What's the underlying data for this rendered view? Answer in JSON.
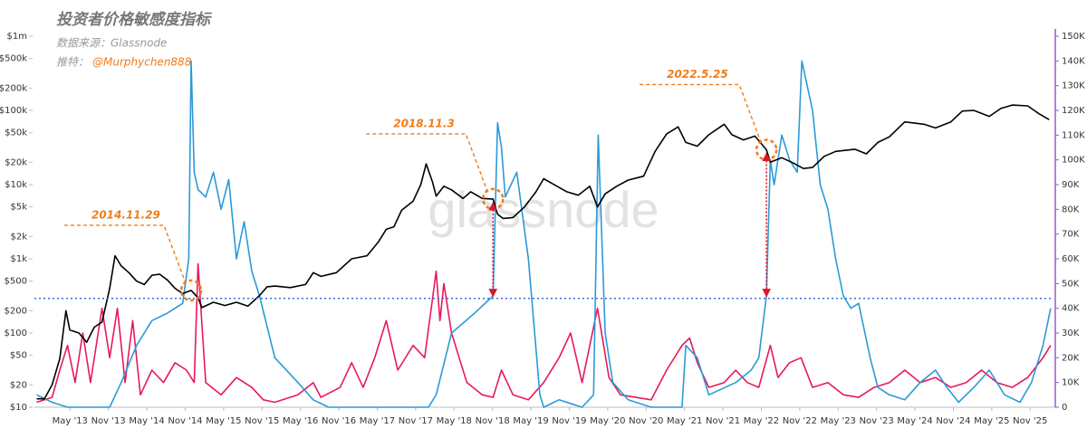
{
  "chart_data": {
    "type": "line",
    "title": "投资者价格敏感度指标",
    "source": "数据来源：Glassnode",
    "twitter_label": "推特：",
    "twitter_handle": "@Murphychen888",
    "watermark": "glassnode",
    "xlim": [
      2012.87,
      2026.16
    ],
    "xticks": [
      {
        "value": 2013.333,
        "label": "May '13"
      },
      {
        "value": 2013.833,
        "label": "Nov '13"
      },
      {
        "value": 2014.333,
        "label": "May '14"
      },
      {
        "value": 2014.833,
        "label": "Nov '14"
      },
      {
        "value": 2015.333,
        "label": "May '15"
      },
      {
        "value": 2015.833,
        "label": "Nov '15"
      },
      {
        "value": 2016.333,
        "label": "May '16"
      },
      {
        "value": 2016.833,
        "label": "Nov '16"
      },
      {
        "value": 2017.333,
        "label": "May '17"
      },
      {
        "value": 2017.833,
        "label": "Nov '17"
      },
      {
        "value": 2018.333,
        "label": "May '18"
      },
      {
        "value": 2018.833,
        "label": "Nov '18"
      },
      {
        "value": 2019.333,
        "label": "May '19"
      },
      {
        "value": 2019.833,
        "label": "Nov '19"
      },
      {
        "value": 2020.333,
        "label": "May '20"
      },
      {
        "value": 2020.833,
        "label": "Nov '20"
      },
      {
        "value": 2021.333,
        "label": "May '21"
      },
      {
        "value": 2021.833,
        "label": "Nov '21"
      },
      {
        "value": 2022.333,
        "label": "May '22"
      },
      {
        "value": 2022.833,
        "label": "Nov '22"
      },
      {
        "value": 2023.333,
        "label": "May '23"
      },
      {
        "value": 2023.833,
        "label": "Nov '23"
      },
      {
        "value": 2024.333,
        "label": "May '24"
      },
      {
        "value": 2024.833,
        "label": "Nov '24"
      },
      {
        "value": 2025.333,
        "label": "May '25"
      },
      {
        "value": 2025.833,
        "label": "Nov '25"
      }
    ],
    "ylim": [
      10,
      1000000
    ],
    "yscale": "log",
    "yticks": [
      {
        "value": 10,
        "label": "$10"
      },
      {
        "value": 20,
        "label": "$20"
      },
      {
        "value": 50,
        "label": "$50"
      },
      {
        "value": 100,
        "label": "$100"
      },
      {
        "value": 200,
        "label": "$200"
      },
      {
        "value": 500,
        "label": "$500"
      },
      {
        "value": 1000,
        "label": "$1k"
      },
      {
        "value": 2000,
        "label": "$2k"
      },
      {
        "value": 5000,
        "label": "$5k"
      },
      {
        "value": 10000,
        "label": "$10k"
      },
      {
        "value": 20000,
        "label": "$20k"
      },
      {
        "value": 50000,
        "label": "$50k"
      },
      {
        "value": 100000,
        "label": "$100k"
      },
      {
        "value": 200000,
        "label": "$200k"
      },
      {
        "value": 500000,
        "label": "$500k"
      },
      {
        "value": 1000000,
        "label": "$1m"
      }
    ],
    "y2lim": [
      0,
      150000
    ],
    "y2ticks": [
      0,
      {
        "value": 10000,
        "label": "10K"
      },
      {
        "value": 20000,
        "label": "20K"
      },
      {
        "value": 30000,
        "label": "30K"
      },
      {
        "value": 40000,
        "label": "40K"
      },
      {
        "value": 50000,
        "label": "50K"
      },
      {
        "value": 60000,
        "label": "60K"
      },
      {
        "value": 70000,
        "label": "70K"
      },
      {
        "value": 80000,
        "label": "80K"
      },
      {
        "value": 90000,
        "label": "90K"
      },
      {
        "value": 100000,
        "label": "100K"
      },
      {
        "value": 110000,
        "label": "110K"
      },
      {
        "value": 120000,
        "label": "120K"
      },
      {
        "value": 130000,
        "label": "130K"
      },
      {
        "value": 140000,
        "label": "140K"
      },
      {
        "value": 150000,
        "label": "150K"
      }
    ],
    "y2_axis_color": "#9b59d0",
    "reference_line": {
      "value": 44000,
      "axis": "y2",
      "color": "#3a6fd8"
    },
    "series": [
      {
        "color": "#e8185e",
        "axis": "y2",
        "x": [
          2012.9,
          2013.1,
          2013.2,
          2013.3,
          2013.4,
          2013.5,
          2013.6,
          2013.75,
          2013.85,
          2013.95,
          2014.05,
          2014.15,
          2014.25,
          2014.4,
          2014.55,
          2014.7,
          2014.85,
          2014.95,
          2015.0,
          2015.1,
          2015.3,
          2015.5,
          2015.7,
          2015.85,
          2016.0,
          2016.3,
          2016.5,
          2016.6,
          2016.85,
          2017.0,
          2017.15,
          2017.3,
          2017.45,
          2017.6,
          2017.8,
          2017.95,
          2018.1,
          2018.15,
          2018.2,
          2018.3,
          2018.4,
          2018.5,
          2018.7,
          2018.84,
          2018.95,
          2019.1,
          2019.3,
          2019.5,
          2019.7,
          2019.85,
          2020.0,
          2020.2,
          2020.35,
          2020.5,
          2020.9,
          2021.1,
          2021.3,
          2021.4,
          2021.5,
          2021.65,
          2021.85,
          2022.0,
          2022.15,
          2022.3,
          2022.45,
          2022.55,
          2022.7,
          2022.85,
          2023.0,
          2023.2,
          2023.4,
          2023.6,
          2023.8,
          2024.0,
          2024.2,
          2024.4,
          2024.6,
          2024.8,
          2025.0,
          2025.2,
          2025.4,
          2025.6,
          2025.8,
          2026.0,
          2026.1
        ],
        "values": [
          2000,
          4000,
          15000,
          25000,
          10000,
          30000,
          10000,
          40000,
          20000,
          40000,
          10000,
          35000,
          5000,
          15000,
          10000,
          18000,
          15000,
          10000,
          58000,
          10000,
          5000,
          12000,
          8000,
          3000,
          2000,
          5000,
          10000,
          4000,
          8000,
          18000,
          8000,
          20000,
          35000,
          15000,
          25000,
          20000,
          55000,
          35000,
          50000,
          30000,
          20000,
          10000,
          5000,
          4000,
          15000,
          5000,
          3000,
          10000,
          20000,
          30000,
          10000,
          40000,
          12000,
          5000,
          3000,
          15000,
          25000,
          28000,
          18000,
          8000,
          10000,
          15000,
          10000,
          8000,
          25000,
          12000,
          18000,
          20000,
          8000,
          10000,
          5000,
          4000,
          8000,
          10000,
          15000,
          10000,
          12000,
          8000,
          10000,
          15000,
          10000,
          8000,
          12000,
          20000,
          25000
        ]
      },
      {
        "color": "#2b9ad8",
        "axis": "y2",
        "x": [
          2012.9,
          2013.1,
          2013.3,
          2013.85,
          2014.0,
          2014.2,
          2014.4,
          2014.6,
          2014.8,
          2014.88,
          2014.91,
          2014.95,
          2015.0,
          2015.1,
          2015.2,
          2015.3,
          2015.4,
          2015.5,
          2015.6,
          2015.7,
          2015.8,
          2016.0,
          2016.3,
          2016.5,
          2016.7,
          2018.0,
          2018.1,
          2018.3,
          2018.6,
          2018.84,
          2018.9,
          2018.95,
          2019.0,
          2019.15,
          2019.3,
          2019.45,
          2019.5,
          2019.7,
          2020.0,
          2020.15,
          2020.21,
          2020.3,
          2020.4,
          2020.6,
          2020.9,
          2021.3,
          2021.35,
          2021.5,
          2021.65,
          2022.0,
          2022.2,
          2022.3,
          2022.4,
          2022.45,
          2022.5,
          2022.6,
          2022.7,
          2022.8,
          2022.86,
          2023.0,
          2023.1,
          2023.2,
          2023.3,
          2023.4,
          2023.5,
          2023.6,
          2023.75,
          2023.85,
          2024.0,
          2024.2,
          2024.4,
          2024.6,
          2024.75,
          2024.9,
          2025.1,
          2025.3,
          2025.5,
          2025.7,
          2025.85,
          2026.0,
          2026.1
        ],
        "values": [
          5000,
          2000,
          0,
          0,
          10000,
          25000,
          35000,
          38000,
          42000,
          60000,
          140000,
          95000,
          88000,
          85000,
          95000,
          80000,
          92000,
          60000,
          75000,
          55000,
          45000,
          20000,
          10000,
          3000,
          0,
          0,
          5000,
          30000,
          38000,
          45000,
          115000,
          105000,
          85000,
          95000,
          60000,
          5000,
          0,
          3000,
          0,
          5000,
          110000,
          30000,
          10000,
          3000,
          0,
          0,
          25000,
          20000,
          5000,
          10000,
          15000,
          20000,
          45000,
          100000,
          90000,
          110000,
          100000,
          95000,
          140000,
          120000,
          90000,
          80000,
          60000,
          45000,
          40000,
          42000,
          20000,
          8000,
          5000,
          3000,
          10000,
          15000,
          8000,
          2000,
          8000,
          15000,
          5000,
          2000,
          10000,
          25000,
          40000
        ]
      },
      {
        "color": "#000000",
        "axis": "y",
        "x": [
          2012.9,
          2013.0,
          2013.1,
          2013.2,
          2013.28,
          2013.33,
          2013.45,
          2013.55,
          2013.65,
          2013.75,
          2013.85,
          2013.92,
          2014.0,
          2014.1,
          2014.2,
          2014.3,
          2014.4,
          2014.5,
          2014.6,
          2014.7,
          2014.8,
          2014.91,
          2015.0,
          2015.05,
          2015.2,
          2015.35,
          2015.5,
          2015.65,
          2015.8,
          2015.9,
          2016.0,
          2016.2,
          2016.4,
          2016.5,
          2016.6,
          2016.8,
          2016.95,
          2017.0,
          2017.2,
          2017.35,
          2017.45,
          2017.55,
          2017.65,
          2017.8,
          2017.9,
          2017.97,
          2018.05,
          2018.1,
          2018.2,
          2018.3,
          2018.45,
          2018.55,
          2018.7,
          2018.84,
          2018.9,
          2018.97,
          2019.1,
          2019.25,
          2019.4,
          2019.5,
          2019.6,
          2019.8,
          2019.95,
          2020.1,
          2020.2,
          2020.3,
          2020.45,
          2020.6,
          2020.8,
          2020.95,
          2021.1,
          2021.25,
          2021.35,
          2021.5,
          2021.65,
          2021.85,
          2021.95,
          2022.1,
          2022.25,
          2022.4,
          2022.45,
          2022.6,
          2022.75,
          2022.88,
          2023.0,
          2023.15,
          2023.3,
          2023.55,
          2023.7,
          2023.85,
          2024.0,
          2024.2,
          2024.45,
          2024.6,
          2024.8,
          2024.95,
          2025.1,
          2025.3,
          2025.45,
          2025.6,
          2025.8,
          2025.95,
          2026.08
        ],
        "values": [
          13,
          13,
          20,
          45,
          200,
          110,
          100,
          75,
          120,
          140,
          400,
          1100,
          800,
          650,
          500,
          450,
          600,
          620,
          520,
          400,
          340,
          375,
          300,
          220,
          260,
          235,
          260,
          230,
          320,
          420,
          430,
          410,
          450,
          650,
          580,
          650,
          900,
          1000,
          1100,
          1700,
          2500,
          2700,
          4500,
          6000,
          10000,
          19000,
          11000,
          7000,
          9500,
          8500,
          6500,
          8000,
          6500,
          6400,
          4000,
          3500,
          3600,
          5000,
          8000,
          12000,
          10500,
          8000,
          7200,
          9500,
          5000,
          7500,
          9500,
          11500,
          13000,
          28000,
          48000,
          60000,
          37000,
          33000,
          47000,
          65000,
          47000,
          40000,
          45000,
          29500,
          20000,
          23000,
          19500,
          16500,
          17000,
          24000,
          28000,
          30000,
          26000,
          37000,
          44000,
          70000,
          65000,
          58000,
          70000,
          98000,
          100000,
          83000,
          106000,
          118000,
          115000,
          90000,
          75000
        ]
      }
    ],
    "annotations": [
      {
        "text": "2014.11.29",
        "x": 2014.91,
        "y": 375,
        "color": "#f07c1a"
      },
      {
        "text": "2018.11.3",
        "x": 2018.84,
        "y": 6400,
        "color": "#f07c1a"
      },
      {
        "text": "2022.5.25",
        "x": 2022.4,
        "y": 29500,
        "color": "#f07c1a"
      }
    ],
    "arrow_color": "#d9172e"
  }
}
